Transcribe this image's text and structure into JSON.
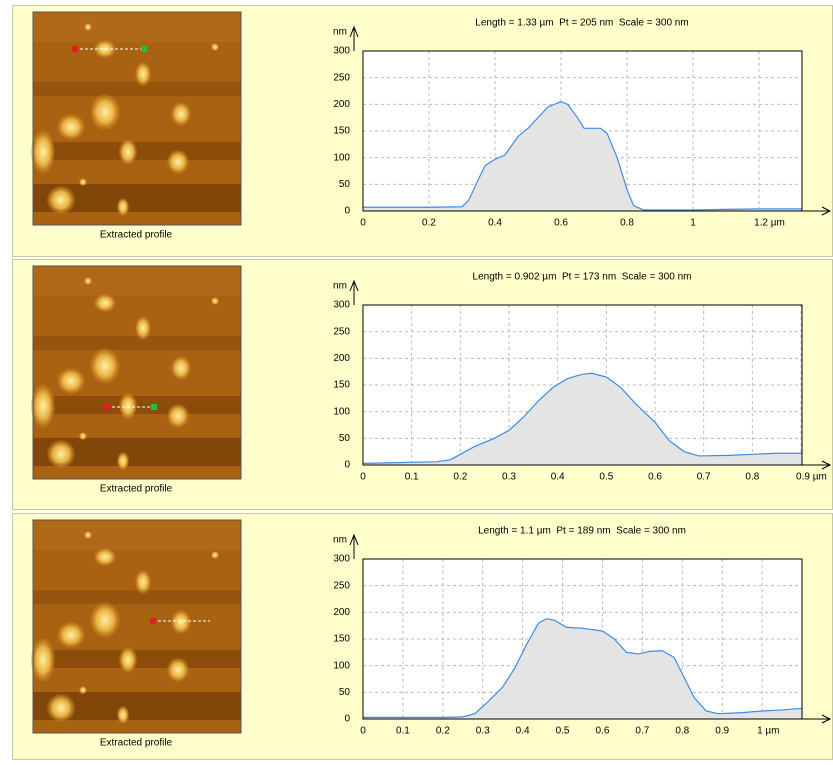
{
  "chart_data": [
    {
      "type": "line",
      "title": "Length = 1.33 µm  Pt = 205 nm  Scale = 300 nm",
      "y_label": "nm",
      "caption": "Extracted profile",
      "x": [
        0,
        0.1,
        0.2,
        0.3,
        0.32,
        0.35,
        0.37,
        0.4,
        0.43,
        0.47,
        0.5,
        0.53,
        0.56,
        0.6,
        0.62,
        0.65,
        0.67,
        0.72,
        0.74,
        0.77,
        0.8,
        0.82,
        0.85,
        0.9,
        1.0,
        1.1,
        1.2,
        1.33
      ],
      "values": [
        7,
        7,
        7,
        8,
        20,
        60,
        85,
        97,
        105,
        140,
        155,
        175,
        195,
        205,
        200,
        175,
        155,
        155,
        145,
        100,
        40,
        10,
        2,
        2,
        2,
        3,
        4,
        4
      ],
      "color": "#3c8ce6",
      "fill": "#e4e4e4",
      "xlim": [
        0,
        1.33
      ],
      "ylim": [
        0,
        300
      ],
      "xticks": [
        0,
        0.2,
        0.4,
        0.6,
        0.8,
        1,
        {
          "value": 1.2,
          "label": "1.2 µm"
        }
      ],
      "yticks": [
        0,
        50,
        100,
        150,
        200,
        250,
        300
      ],
      "grid": true
    },
    {
      "type": "line",
      "title": "Length = 0.902 µm  Pt = 173 nm  Scale = 300 nm",
      "y_label": "nm",
      "caption": "Extracted profile",
      "x": [
        0,
        0.05,
        0.1,
        0.15,
        0.18,
        0.2,
        0.23,
        0.27,
        0.3,
        0.33,
        0.36,
        0.39,
        0.42,
        0.45,
        0.47,
        0.5,
        0.53,
        0.56,
        0.6,
        0.63,
        0.66,
        0.69,
        0.75,
        0.8,
        0.85,
        0.902
      ],
      "values": [
        3,
        4,
        5,
        6,
        10,
        20,
        35,
        50,
        65,
        90,
        120,
        145,
        162,
        170,
        172,
        165,
        145,
        115,
        80,
        45,
        25,
        17,
        18,
        20,
        22,
        22
      ],
      "color": "#3c8ce6",
      "fill": "#e4e4e4",
      "xlim": [
        0,
        0.902
      ],
      "ylim": [
        0,
        300
      ],
      "xticks": [
        0,
        0.1,
        0.2,
        0.3,
        0.4,
        0.5,
        0.6,
        0.7,
        0.8,
        {
          "value": 0.9,
          "label": "0.9 µm"
        }
      ],
      "yticks": [
        0,
        50,
        100,
        150,
        200,
        250,
        300
      ],
      "grid": true
    },
    {
      "type": "line",
      "title": "Length = 1.1 µm  Pt = 189 nm  Scale = 300 nm",
      "y_label": "nm",
      "caption": "Extracted profile",
      "x": [
        0,
        0.1,
        0.2,
        0.25,
        0.28,
        0.31,
        0.35,
        0.38,
        0.41,
        0.44,
        0.46,
        0.48,
        0.51,
        0.55,
        0.6,
        0.63,
        0.66,
        0.69,
        0.72,
        0.75,
        0.78,
        0.8,
        0.83,
        0.86,
        0.89,
        0.95,
        1.0,
        1.05,
        1.1
      ],
      "values": [
        3,
        3,
        3,
        4,
        10,
        30,
        60,
        95,
        140,
        180,
        188,
        185,
        172,
        170,
        165,
        150,
        125,
        122,
        127,
        128,
        115,
        85,
        40,
        15,
        10,
        12,
        15,
        17,
        20
      ],
      "color": "#3c8ce6",
      "fill": "#e4e4e4",
      "xlim": [
        0,
        1.1
      ],
      "ylim": [
        0,
        300
      ],
      "xticks": [
        0,
        0.1,
        0.2,
        0.3,
        0.4,
        0.5,
        0.6,
        0.7,
        0.8,
        0.9,
        {
          "value": 1,
          "label": "1 µm"
        }
      ],
      "yticks": [
        0,
        50,
        100,
        150,
        200,
        250,
        300
      ],
      "grid": true
    }
  ]
}
